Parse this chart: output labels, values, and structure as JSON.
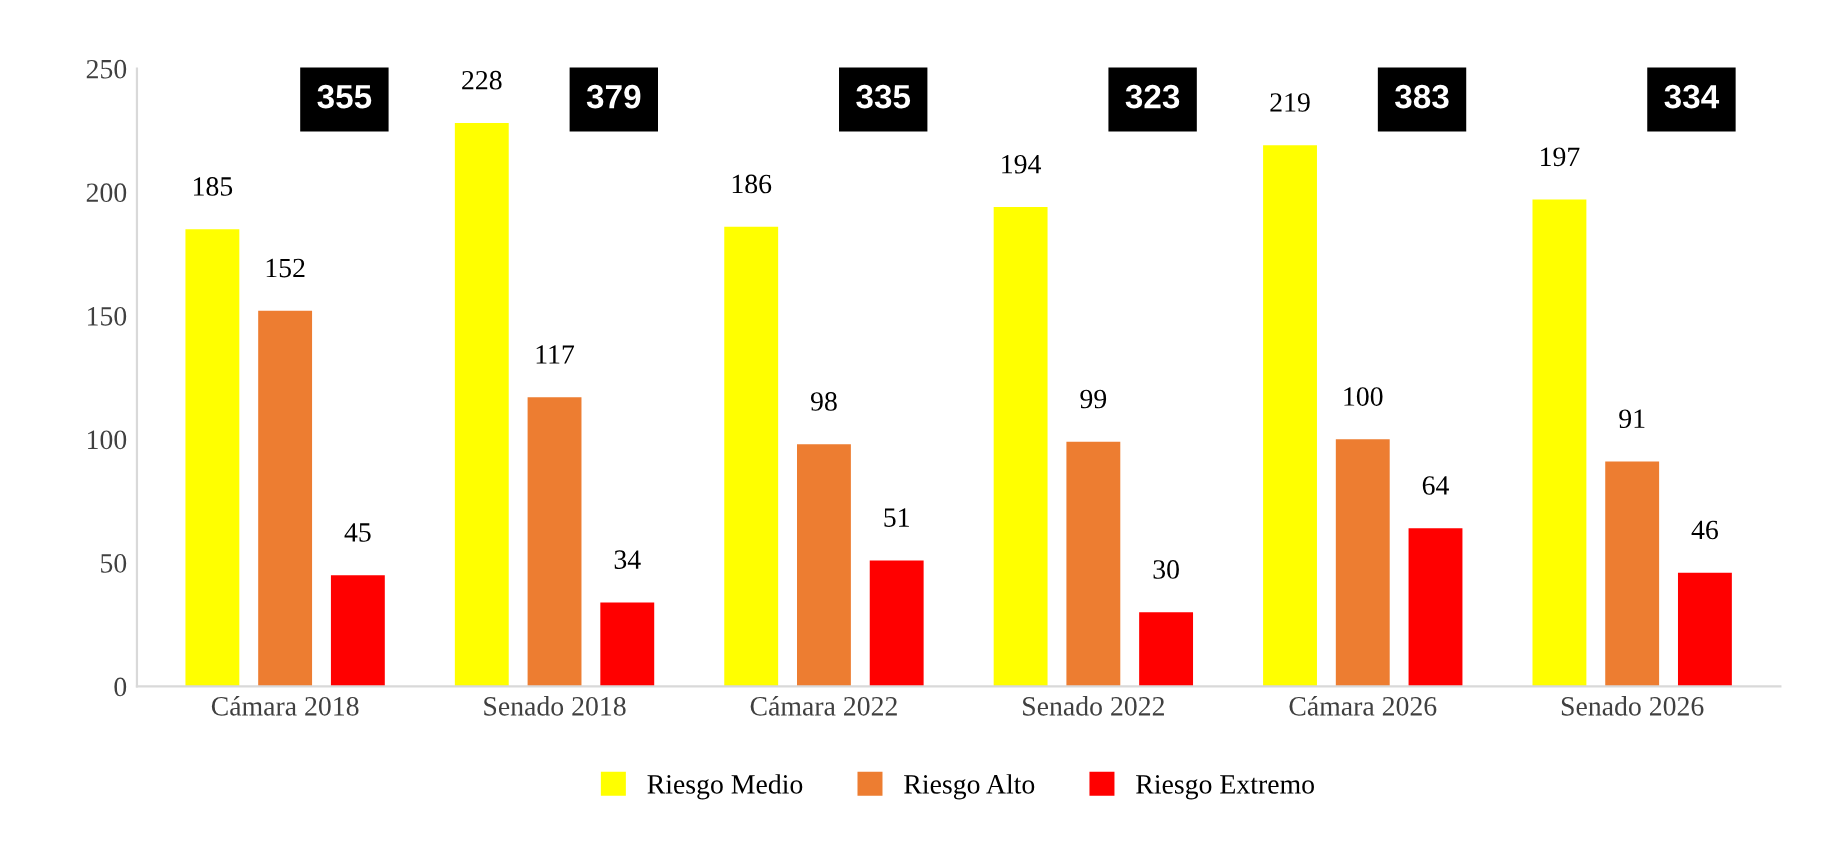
{
  "chart_data": {
    "type": "bar",
    "categories": [
      "Cámara 2018",
      "Senado 2018",
      "Cámara 2022",
      "Senado 2022",
      "Cámara 2026",
      "Senado 2026"
    ],
    "series": [
      {
        "name": "Riesgo Medio",
        "color": "#ffff00",
        "values": [
          185,
          228,
          186,
          194,
          219,
          197
        ]
      },
      {
        "name": "Riesgo Alto",
        "color": "#ed7d31",
        "values": [
          152,
          117,
          98,
          99,
          100,
          91
        ]
      },
      {
        "name": "Riesgo Extremo",
        "color": "#ff0000",
        "values": [
          45,
          34,
          51,
          30,
          64,
          46
        ]
      }
    ],
    "ylim": [
      0,
      250
    ],
    "yticks": [
      0,
      50,
      100,
      150,
      200,
      250
    ],
    "grid": false,
    "legend": "bottom",
    "data_labels": true,
    "annotations": [
      "355",
      "379",
      "335",
      "323",
      "383",
      "334"
    ]
  }
}
